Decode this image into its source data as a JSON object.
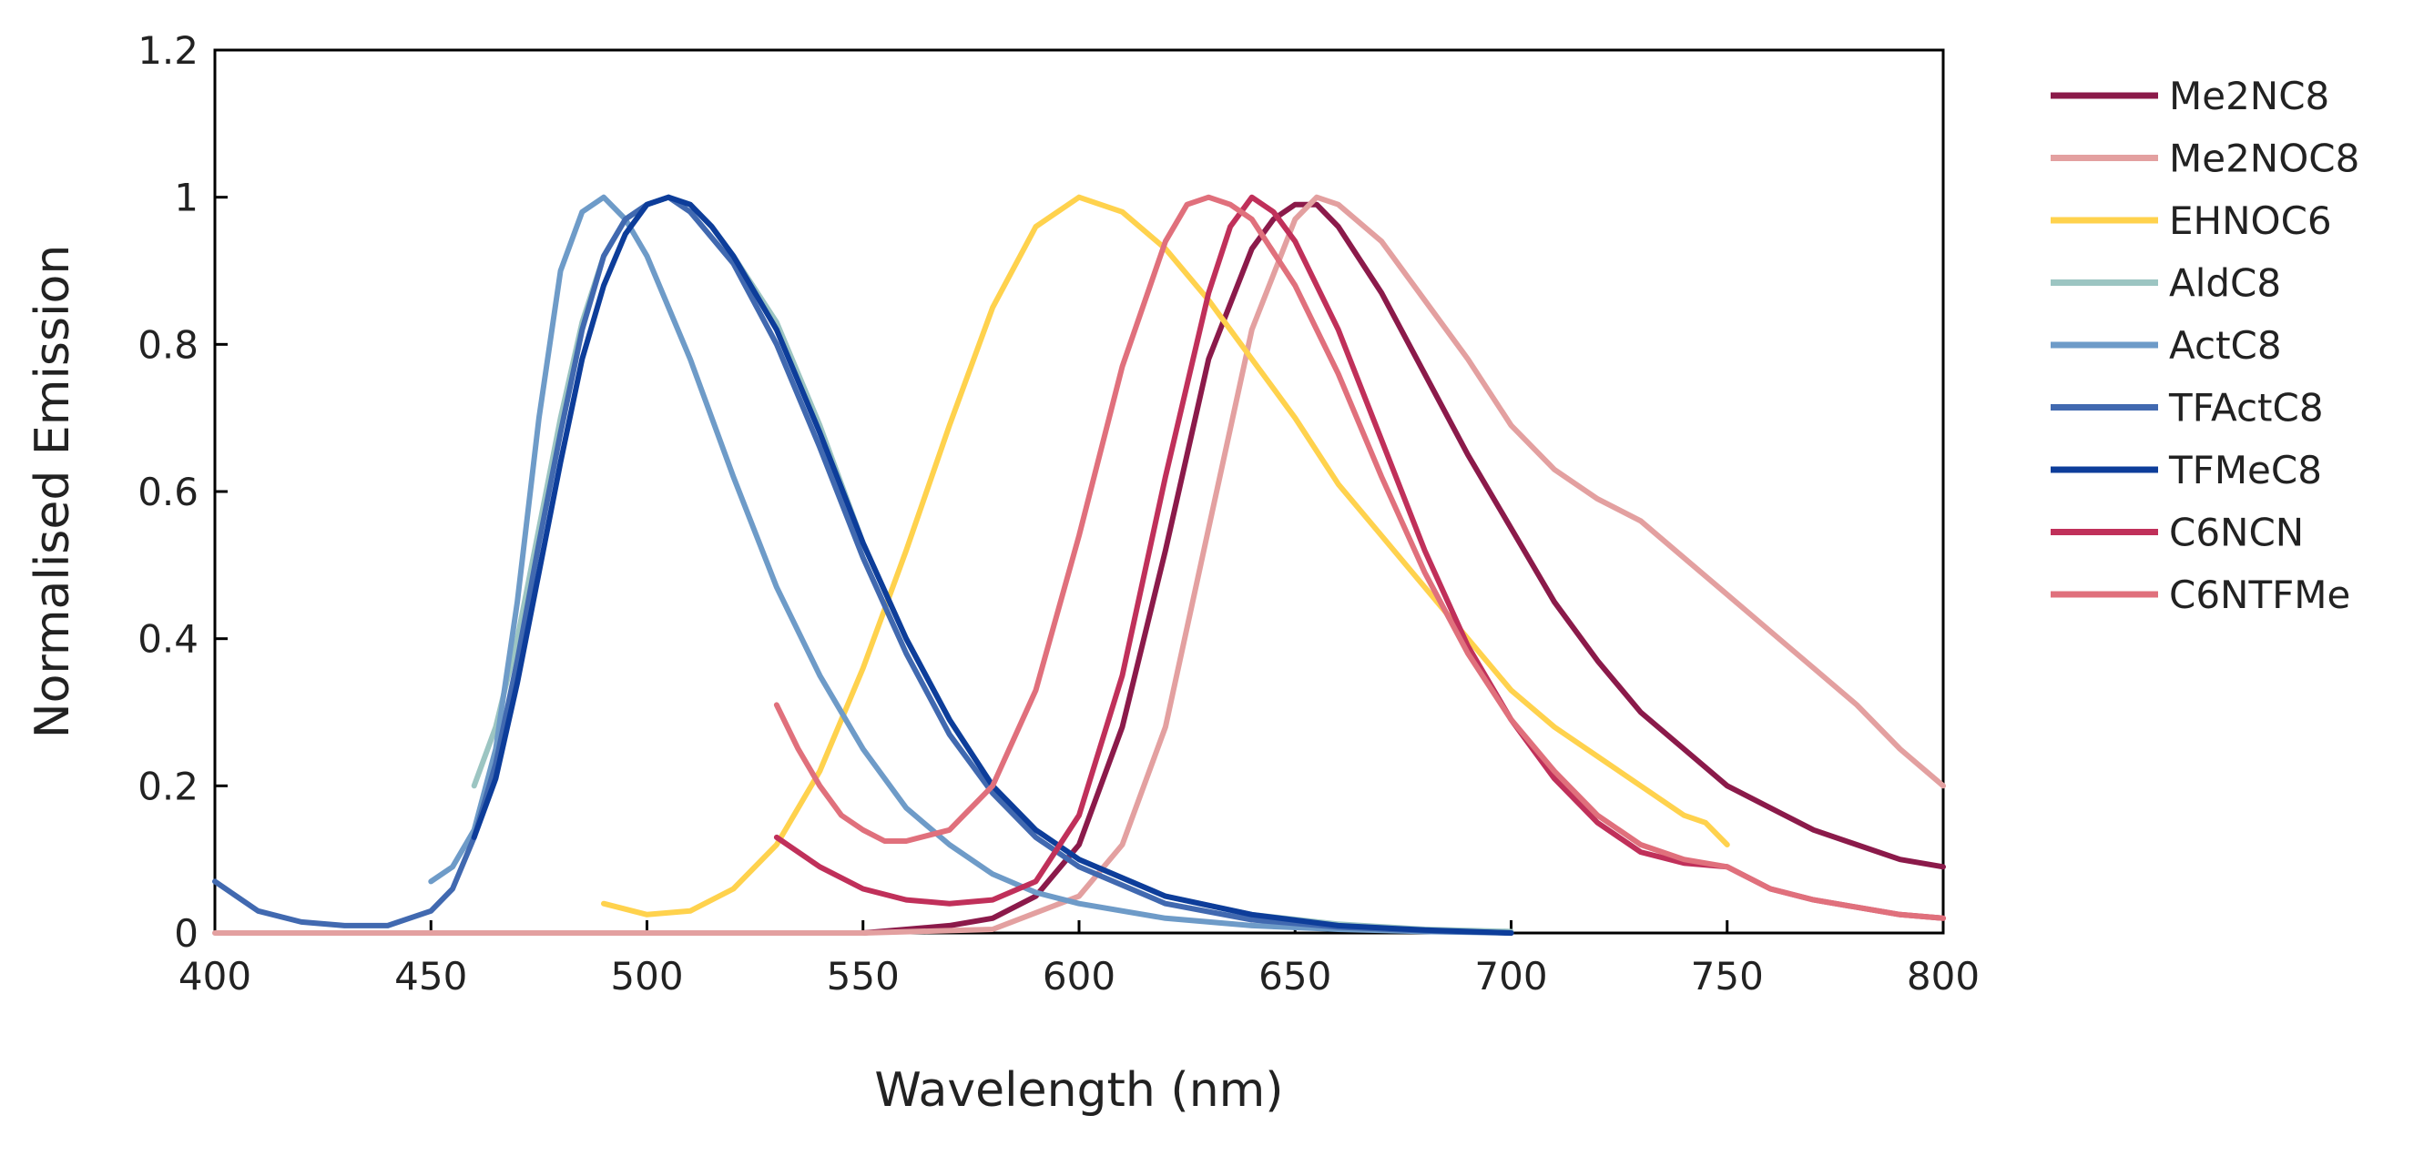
{
  "chart_data": {
    "type": "line",
    "title": "",
    "xlabel": "Wavelength (nm)",
    "ylabel": "Normalised Emission",
    "xlim": [
      400,
      800
    ],
    "ylim": [
      0,
      1.2
    ],
    "xticks": [
      400,
      450,
      500,
      550,
      600,
      650,
      700,
      750,
      800
    ],
    "yticks": [
      0,
      0.2,
      0.4,
      0.6,
      0.8,
      1,
      1.2
    ],
    "xtick_labels": [
      "400",
      "450",
      "500",
      "550",
      "600",
      "650",
      "700",
      "750",
      "800"
    ],
    "ytick_labels": [
      "0",
      "0.2",
      "0.4",
      "0.6",
      "0.8",
      "1",
      "1.2"
    ],
    "grid": false,
    "legend_position": "right",
    "series": [
      {
        "name": "Me2NC8",
        "color": "#8B1A4A",
        "x": [
          530,
          540,
          550,
          560,
          570,
          580,
          590,
          600,
          610,
          620,
          630,
          640,
          645,
          650,
          655,
          660,
          670,
          680,
          690,
          700,
          710,
          720,
          730,
          740,
          750,
          760,
          770,
          780,
          790,
          800
        ],
        "y": [
          0.0,
          0.0,
          0.0,
          0.005,
          0.01,
          0.02,
          0.05,
          0.12,
          0.28,
          0.52,
          0.78,
          0.93,
          0.97,
          0.99,
          0.99,
          0.96,
          0.87,
          0.76,
          0.65,
          0.55,
          0.45,
          0.37,
          0.3,
          0.25,
          0.2,
          0.17,
          0.14,
          0.12,
          0.1,
          0.09
        ]
      },
      {
        "name": "Me2NOC8",
        "color": "#E3A0A0",
        "x": [
          400,
          450,
          500,
          550,
          580,
          600,
          610,
          620,
          630,
          640,
          650,
          655,
          660,
          670,
          680,
          690,
          700,
          710,
          720,
          730,
          740,
          750,
          760,
          770,
          780,
          790,
          800
        ],
        "y": [
          0.0,
          0.0,
          0.0,
          0.0,
          0.005,
          0.05,
          0.12,
          0.28,
          0.55,
          0.82,
          0.97,
          1.0,
          0.99,
          0.94,
          0.86,
          0.78,
          0.69,
          0.63,
          0.59,
          0.56,
          0.51,
          0.46,
          0.41,
          0.36,
          0.31,
          0.25,
          0.2
        ]
      },
      {
        "name": "EHNOC6",
        "color": "#FFD24D",
        "x": [
          490,
          500,
          510,
          520,
          530,
          540,
          550,
          560,
          570,
          580,
          590,
          600,
          610,
          620,
          630,
          640,
          650,
          660,
          670,
          680,
          690,
          700,
          710,
          720,
          730,
          740,
          745,
          750
        ],
        "y": [
          0.04,
          0.025,
          0.03,
          0.06,
          0.12,
          0.22,
          0.36,
          0.52,
          0.69,
          0.85,
          0.96,
          1.0,
          0.98,
          0.93,
          0.86,
          0.78,
          0.7,
          0.61,
          0.54,
          0.47,
          0.4,
          0.33,
          0.28,
          0.24,
          0.2,
          0.16,
          0.15,
          0.12
        ]
      },
      {
        "name": "AldC8",
        "color": "#9CC5C2",
        "x": [
          460,
          465,
          470,
          475,
          480,
          485,
          490,
          495,
          500,
          505,
          510,
          515,
          520,
          530,
          540,
          550,
          560,
          570,
          580,
          590,
          600,
          620,
          640,
          660,
          680,
          700
        ],
        "y": [
          0.2,
          0.28,
          0.4,
          0.55,
          0.7,
          0.83,
          0.92,
          0.97,
          0.99,
          1.0,
          0.99,
          0.96,
          0.92,
          0.83,
          0.69,
          0.53,
          0.4,
          0.29,
          0.2,
          0.14,
          0.1,
          0.05,
          0.025,
          0.012,
          0.005,
          0.002
        ]
      },
      {
        "name": "ActC8",
        "color": "#6E9BC8",
        "x": [
          450,
          455,
          460,
          465,
          470,
          475,
          480,
          485,
          490,
          495,
          500,
          510,
          520,
          530,
          540,
          550,
          560,
          570,
          580,
          590,
          600,
          620,
          640,
          660,
          680,
          700
        ],
        "y": [
          0.07,
          0.09,
          0.14,
          0.25,
          0.45,
          0.7,
          0.9,
          0.98,
          1.0,
          0.97,
          0.92,
          0.78,
          0.62,
          0.47,
          0.35,
          0.25,
          0.17,
          0.12,
          0.08,
          0.055,
          0.04,
          0.02,
          0.01,
          0.005,
          0.002,
          0.0
        ]
      },
      {
        "name": "TFActC8",
        "color": "#4169B0",
        "x": [
          400,
          405,
          410,
          420,
          430,
          440,
          450,
          455,
          460,
          465,
          470,
          475,
          480,
          485,
          490,
          495,
          500,
          505,
          510,
          520,
          530,
          540,
          550,
          560,
          570,
          580,
          590,
          600,
          620,
          640,
          660,
          680,
          700
        ],
        "y": [
          0.07,
          0.05,
          0.03,
          0.015,
          0.01,
          0.01,
          0.03,
          0.06,
          0.13,
          0.23,
          0.37,
          0.53,
          0.68,
          0.82,
          0.92,
          0.97,
          0.99,
          1.0,
          0.98,
          0.91,
          0.8,
          0.66,
          0.51,
          0.38,
          0.27,
          0.19,
          0.13,
          0.09,
          0.04,
          0.018,
          0.008,
          0.003,
          0.0
        ]
      },
      {
        "name": "TFMeC8",
        "color": "#0D3D9A",
        "x": [
          460,
          465,
          470,
          475,
          480,
          485,
          490,
          495,
          500,
          505,
          510,
          515,
          520,
          530,
          540,
          550,
          560,
          570,
          580,
          590,
          600,
          620,
          640,
          660,
          680,
          700
        ],
        "y": [
          0.13,
          0.21,
          0.34,
          0.49,
          0.64,
          0.78,
          0.88,
          0.95,
          0.99,
          1.0,
          0.99,
          0.96,
          0.92,
          0.82,
          0.68,
          0.53,
          0.4,
          0.29,
          0.2,
          0.14,
          0.1,
          0.05,
          0.025,
          0.01,
          0.004,
          0.0
        ]
      },
      {
        "name": "C6NCN",
        "color": "#C0305A",
        "x": [
          530,
          540,
          550,
          560,
          570,
          580,
          590,
          600,
          610,
          620,
          630,
          635,
          640,
          645,
          650,
          660,
          670,
          680,
          690,
          700,
          710,
          720,
          730,
          740,
          750,
          760,
          770,
          780,
          790,
          800
        ],
        "y": [
          0.13,
          0.09,
          0.06,
          0.045,
          0.04,
          0.045,
          0.07,
          0.16,
          0.35,
          0.62,
          0.87,
          0.96,
          1.0,
          0.98,
          0.94,
          0.82,
          0.67,
          0.52,
          0.39,
          0.29,
          0.21,
          0.15,
          0.11,
          0.095,
          0.09,
          0.06,
          0.045,
          0.035,
          0.025,
          0.02
        ]
      },
      {
        "name": "C6NTFMe",
        "color": "#E0707C",
        "x": [
          530,
          535,
          540,
          545,
          550,
          555,
          560,
          570,
          580,
          590,
          600,
          610,
          620,
          625,
          630,
          635,
          640,
          650,
          660,
          670,
          680,
          690,
          700,
          710,
          720,
          730,
          740,
          750,
          760,
          770,
          780,
          790,
          800
        ],
        "y": [
          0.31,
          0.25,
          0.2,
          0.16,
          0.14,
          0.125,
          0.125,
          0.14,
          0.2,
          0.33,
          0.54,
          0.77,
          0.94,
          0.99,
          1.0,
          0.99,
          0.97,
          0.88,
          0.76,
          0.62,
          0.49,
          0.38,
          0.29,
          0.22,
          0.16,
          0.12,
          0.1,
          0.09,
          0.06,
          0.045,
          0.035,
          0.025,
          0.02
        ]
      }
    ]
  }
}
